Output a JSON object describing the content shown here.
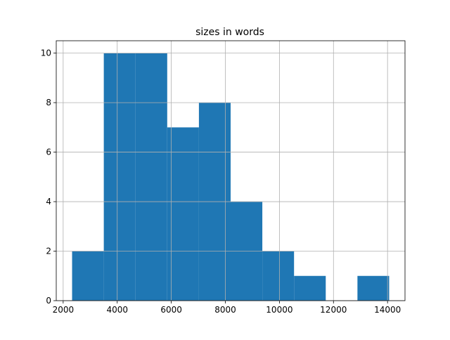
{
  "chart_data": {
    "type": "histogram",
    "title": "sizes in words",
    "bins": [
      2330,
      3503,
      4676,
      5849,
      7022,
      8195,
      9368,
      10541,
      11714,
      12887,
      14060
    ],
    "values": [
      2,
      10,
      10,
      7,
      8,
      4,
      2,
      1,
      0,
      1
    ],
    "color": "#1f77b4",
    "xlim": [
      1744,
      14646
    ],
    "xticks": [
      2000,
      4000,
      6000,
      8000,
      10000,
      12000,
      14000
    ],
    "ylim": [
      0,
      10.5
    ],
    "yticks": [
      0,
      2,
      4,
      6,
      8,
      10
    ],
    "grid": true
  }
}
